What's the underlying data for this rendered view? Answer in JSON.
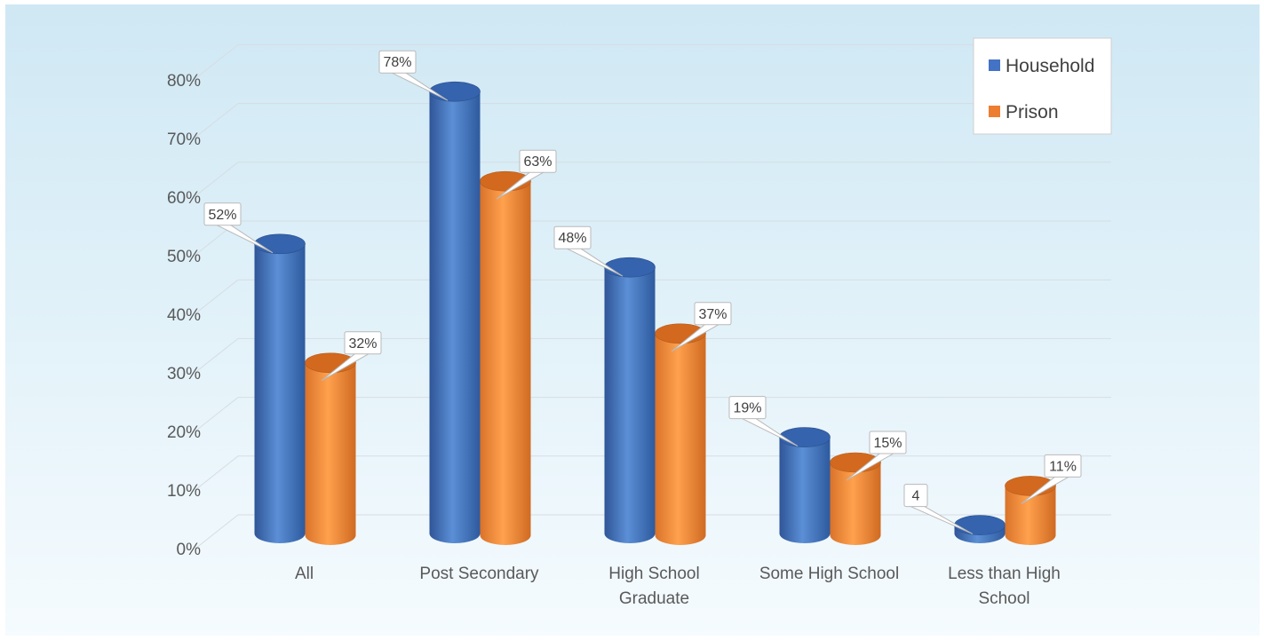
{
  "chart_data": {
    "type": "bar",
    "title": "",
    "xlabel": "",
    "ylabel": "",
    "ylim": [
      0,
      80
    ],
    "y_ticks": [
      "0%",
      "10%",
      "20%",
      "30%",
      "40%",
      "50%",
      "60%",
      "70%",
      "80%"
    ],
    "categories": [
      [
        "All"
      ],
      [
        "Post Secondary"
      ],
      [
        "High School",
        "Graduate"
      ],
      [
        "Some High School"
      ],
      [
        "Less than High",
        "School"
      ]
    ],
    "series": [
      {
        "name": "Household",
        "values": [
          52,
          78,
          48,
          19,
          4
        ],
        "labels": [
          "52%",
          "78%",
          "48%",
          "19%",
          "4"
        ]
      },
      {
        "name": "Prison",
        "values": [
          32,
          63,
          37,
          15,
          11
        ],
        "labels": [
          "32%",
          "63%",
          "37%",
          "15%",
          "11%"
        ]
      }
    ],
    "grid": true,
    "legend_position": "top-right",
    "colors": {
      "Household": "#4472c4",
      "Prison": "#ed7d31",
      "background_top": "#d0e9f5",
      "background_bottom": "#f5fbfe",
      "gridline": "#d6dde3",
      "axis_text": "#595959"
    }
  }
}
